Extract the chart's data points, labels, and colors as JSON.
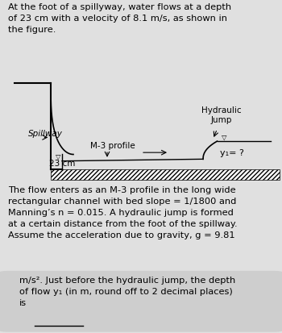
{
  "bg_color": "#e0e0e0",
  "answer_box_color": "#cecece",
  "text_color": "#000000",
  "title_text": "At the foot of a spillyway, water flows at a depth\nof 23 cm with a velocity of 8.1 m/s, as shown in\nthe figure.",
  "body_text": "The flow enters as an M-3 profile in the long wide\nrectangular channel with bed slope = 1/1800 and\nManning’s n = 0.015. A hydraulic jump is formed\nat a certain distance from the foot of the spillway.\nAssume the acceleration due to gravity, g = 9.81",
  "answer_text": "m/s². Just before the hydraulic jump, the depth\nof flow y₁ (in m, round off to 2 decimal places)\nis",
  "label_spillway": "Spillway",
  "label_m3": "M-3 profile",
  "label_23cm": "23 cm",
  "label_y1": "y₁= ?",
  "label_hj1": "Hydraulic",
  "label_hj2": "Jump",
  "fig_width": 3.5,
  "fig_height": 4.13,
  "dpi": 100
}
